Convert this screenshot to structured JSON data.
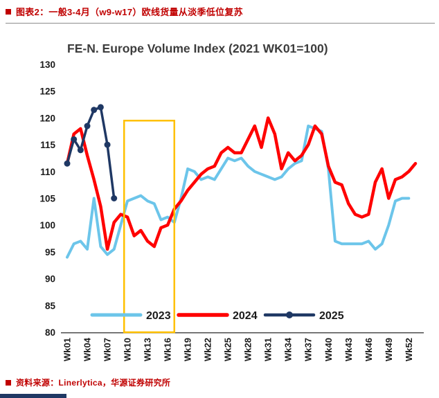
{
  "page": {
    "header": {
      "caption": "图表2：一般3-4月（w9-w17）欧线货量从淡季低位复苏"
    },
    "footer": {
      "source": "资料来源：Linerlytica，华源证券研究所"
    },
    "accent_colors": {
      "caption_red": "#c00000",
      "bottom_bar_navy": "#1f3864"
    }
  },
  "chart_data": {
    "type": "line",
    "title": "FE-N. Europe Volume Index (2021 WK01=100)",
    "xlabel": "",
    "ylabel": "",
    "grid": false,
    "background": "#ffffff",
    "ylim": [
      80,
      130
    ],
    "y_ticks": [
      80,
      85,
      90,
      95,
      100,
      105,
      110,
      115,
      120,
      125,
      130
    ],
    "x_tick_weeks": [
      1,
      4,
      7,
      10,
      13,
      16,
      19,
      22,
      25,
      28,
      31,
      34,
      37,
      40,
      43,
      46,
      49,
      52
    ],
    "x_tick_labels": [
      "Wk01",
      "Wk04",
      "Wk07",
      "Wk10",
      "Wk13",
      "Wk16",
      "Wk19",
      "Wk22",
      "Wk25",
      "Wk28",
      "Wk31",
      "Wk34",
      "Wk37",
      "Wk40",
      "Wk43",
      "Wk46",
      "Wk49",
      "Wk52"
    ],
    "legend_position": "bottom-inside",
    "series": [
      {
        "name": "2023",
        "color": "#6cc5ea",
        "line_width": 4,
        "marker": false,
        "start_week": 1,
        "values": [
          94,
          96.5,
          97,
          95.5,
          105,
          96,
          94.5,
          95.5,
          100,
          104.5,
          105,
          105.5,
          104.5,
          104,
          101,
          101.5,
          100.5,
          105,
          110.5,
          110,
          108.5,
          109,
          108.5,
          110.5,
          112.5,
          112,
          112.5,
          111,
          110,
          109.5,
          109,
          108.5,
          109,
          110.5,
          111.5,
          112,
          118.5,
          118,
          117.5,
          110.5,
          97,
          96.5,
          96.5,
          96.5,
          96.5,
          97,
          95.5,
          96.5,
          100,
          104.5,
          105,
          105
        ]
      },
      {
        "name": "2024",
        "color": "#ff0000",
        "line_width": 4.5,
        "marker": false,
        "start_week": 1,
        "values": [
          111.5,
          117,
          118,
          113,
          108.5,
          103.5,
          95.5,
          100.5,
          102,
          101.5,
          98,
          99,
          97,
          96,
          99.5,
          100,
          103,
          104.5,
          106.5,
          108,
          109.5,
          110.5,
          111,
          113.5,
          114.5,
          113.5,
          113.5,
          116,
          118.5,
          114.5,
          120,
          117,
          110.5,
          113.5,
          112,
          113,
          115,
          118.5,
          117,
          111,
          108,
          107.5,
          104,
          102,
          101.5,
          102,
          108,
          110.5,
          105,
          108.5,
          109,
          110,
          111.5
        ]
      },
      {
        "name": "2025",
        "color": "#1f3864",
        "line_width": 3.5,
        "marker": true,
        "start_week": 1,
        "values": [
          111.5,
          116,
          114,
          118.5,
          121.5,
          122,
          115,
          105
        ]
      }
    ],
    "highlight_box": {
      "week_start": 9.5,
      "week_end": 17,
      "value_bottom": 80,
      "value_top": 119.5,
      "color": "#ffc000"
    }
  }
}
